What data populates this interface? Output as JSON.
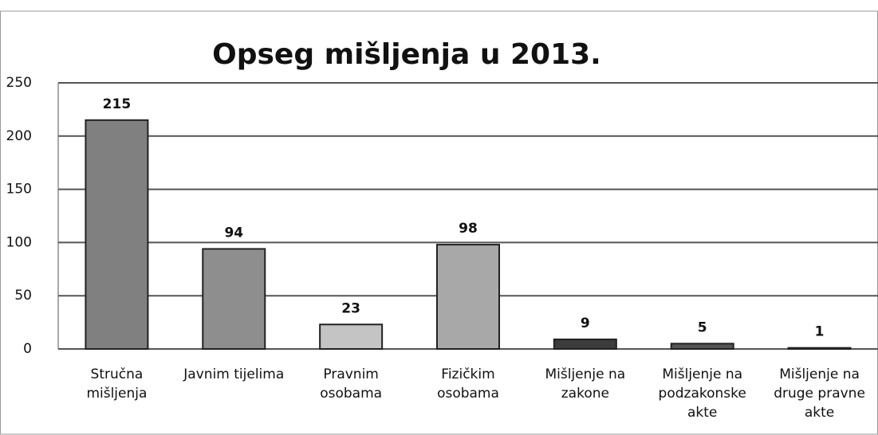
{
  "chart_data": {
    "type": "bar",
    "title": "Opseg mišljenja u 2013.",
    "categories": [
      "Stručna mišljenja",
      "Javnim tijelima",
      "Pravnim osobama",
      "Fizičkim osobama",
      "Mišljenje na zakone",
      "Mišljenje na podzakonske akte",
      "Mišljenje na druge pravne akte"
    ],
    "values": [
      215,
      94,
      23,
      98,
      9,
      5,
      1
    ],
    "colors": [
      "#808080",
      "#8e8e8e",
      "#c4c4c4",
      "#a8a8a8",
      "#3c3c3c",
      "#555555",
      "#3a3a3a"
    ],
    "ylim": [
      0,
      250
    ],
    "yticks": [
      0,
      50,
      100,
      150,
      200,
      250
    ],
    "grid": true
  }
}
